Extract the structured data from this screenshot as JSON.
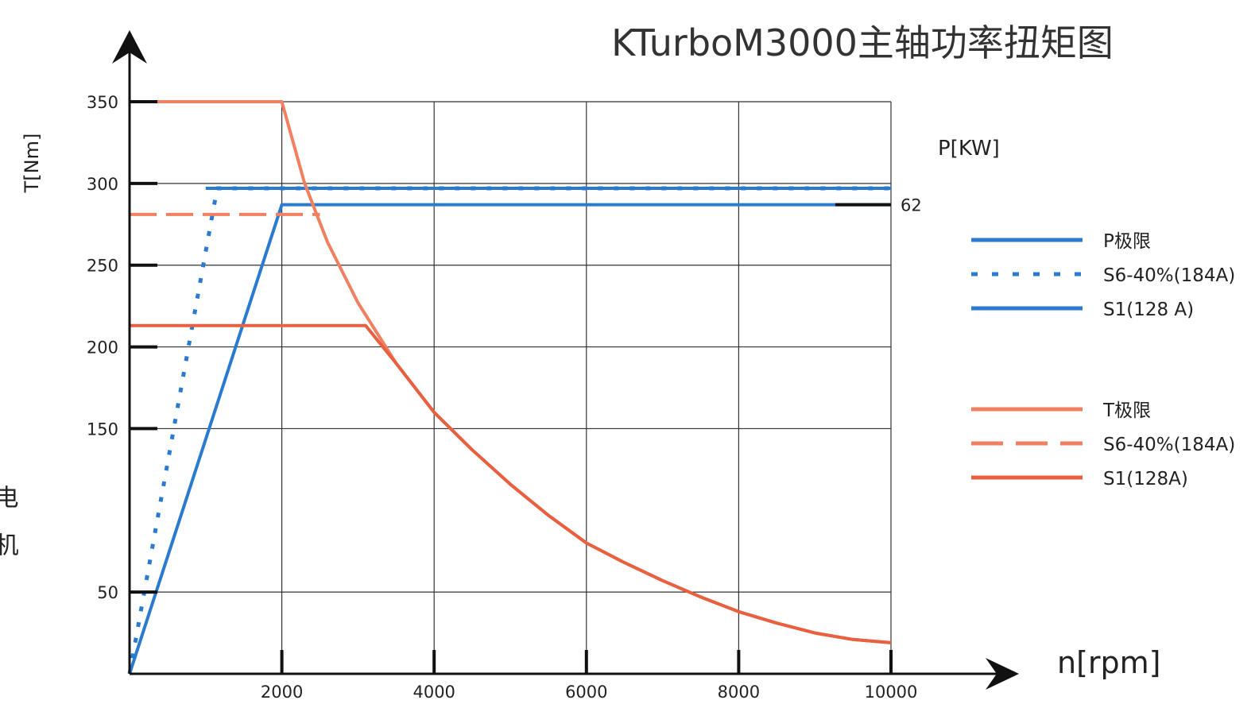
{
  "chart_data": {
    "type": "line",
    "title": "KTurboM3000主轴功率扭矩图",
    "xlabel": "n[rpm]",
    "ylabel": "T[Nm]",
    "y2label": "P[KW]",
    "xlim": [
      0,
      10000
    ],
    "ylim": [
      0,
      350
    ],
    "x_ticks": [
      2000,
      4000,
      6000,
      8000,
      10000
    ],
    "y_ticks": [
      50,
      150,
      200,
      250,
      300,
      350
    ],
    "y2_ticks": [
      {
        "at": 287,
        "label": "62"
      }
    ],
    "grid": true,
    "legend_position": "right",
    "series": [
      {
        "name": "P极限",
        "axis": "power",
        "style": "solid",
        "color": "#2a7bd0",
        "x": [
          1000,
          10000
        ],
        "y": [
          297,
          297
        ]
      },
      {
        "name": "S6-40%(184A)",
        "axis": "power",
        "style": "dotted",
        "color": "#2a7bd0",
        "x": [
          0,
          1150,
          10000
        ],
        "y": [
          0,
          297,
          297
        ]
      },
      {
        "name": "S1(128 A)",
        "axis": "power",
        "style": "solid",
        "color": "#2a7bd0",
        "x": [
          0,
          2000,
          10000
        ],
        "y": [
          0,
          287,
          287
        ]
      },
      {
        "name": "T极限",
        "axis": "torque",
        "style": "solid",
        "color": "#f08060",
        "x": [
          0,
          2000,
          2300,
          2600,
          3000,
          3500,
          4000,
          4500,
          5000,
          5500,
          6000,
          6500,
          7000,
          7500,
          8000,
          8500,
          9000,
          9500,
          10000
        ],
        "y": [
          350,
          350,
          300,
          264,
          227,
          190,
          160,
          137,
          116,
          97,
          80,
          68,
          57,
          47,
          38,
          31,
          25,
          21,
          19
        ]
      },
      {
        "name": "S6-40%(184A)",
        "axis": "torque",
        "style": "dashed",
        "color": "#f08060",
        "x": [
          0,
          2500
        ],
        "y": [
          281,
          281
        ]
      },
      {
        "name": "S1(128A)",
        "axis": "torque",
        "style": "solid",
        "color": "#e86040",
        "x": [
          0,
          3100,
          3500,
          4000,
          4500,
          5000,
          5500,
          6000,
          6500,
          7000,
          7500,
          8000,
          8500,
          9000,
          9500,
          10000
        ],
        "y": [
          213,
          213,
          190,
          160,
          137,
          116,
          97,
          80,
          68,
          57,
          47,
          38,
          31,
          25,
          21,
          19
        ]
      }
    ]
  },
  "legend": {
    "power_items": [
      {
        "label": "P极限",
        "style": "solid",
        "color": "#2a7bd0"
      },
      {
        "label": "S6-40%(184A)",
        "style": "dotted",
        "color": "#2a7bd0"
      },
      {
        "label": "S1(128 A)",
        "style": "solid",
        "color": "#2a7bd0"
      }
    ],
    "torque_items": [
      {
        "label": "T极限",
        "style": "solid",
        "color": "#f08060"
      },
      {
        "label": "S6-40%(184A)",
        "style": "dashed",
        "color": "#f08060"
      },
      {
        "label": "S1(128A)",
        "style": "solid",
        "color": "#e86040"
      }
    ]
  },
  "side_fragment": "电机"
}
